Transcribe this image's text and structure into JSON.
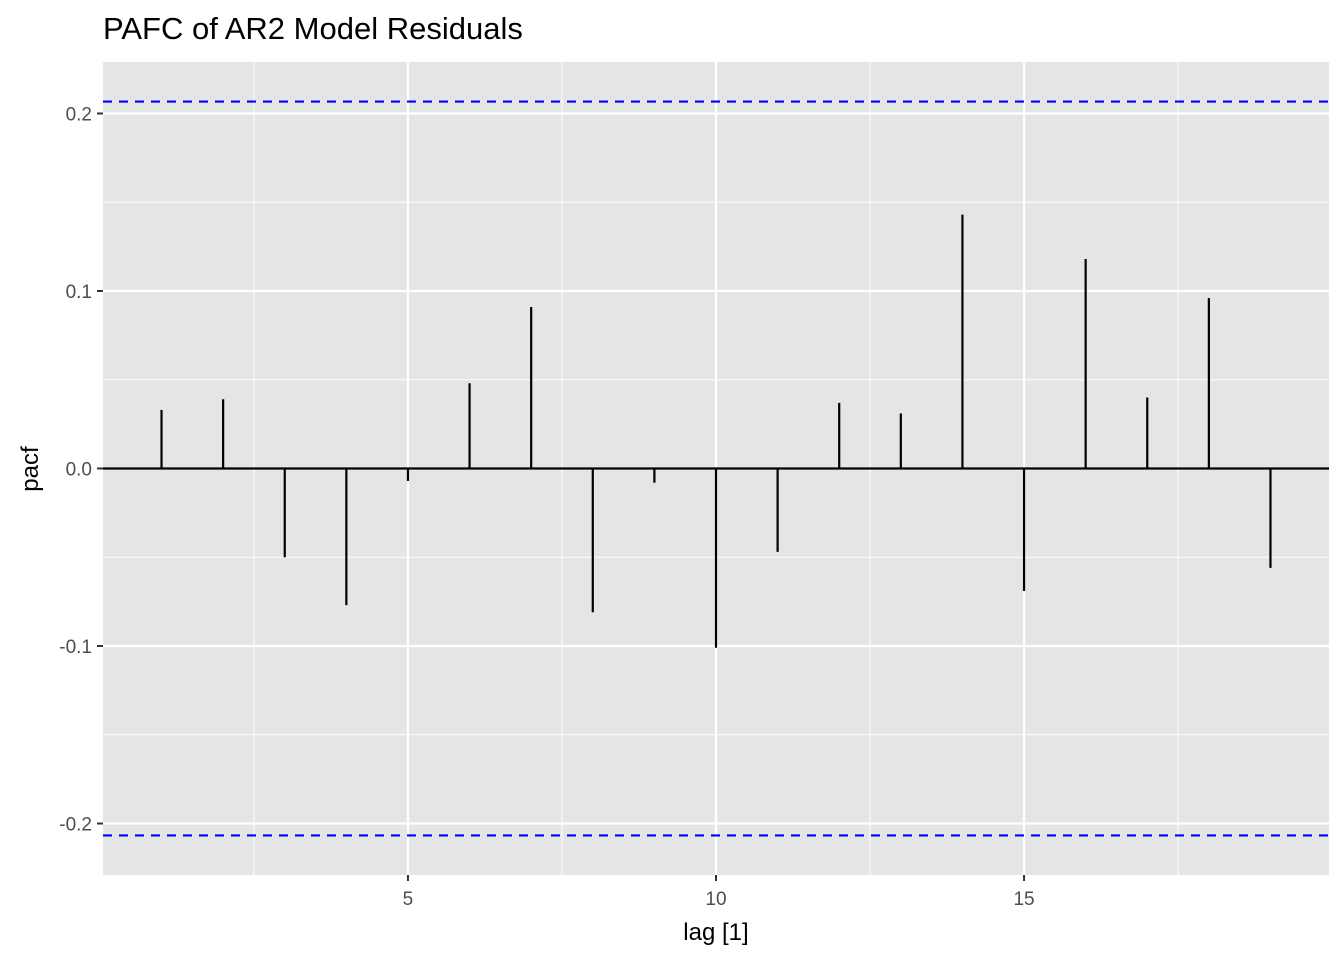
{
  "chart_data": {
    "type": "bar",
    "title": "PAFC of AR2 Model Residuals",
    "xlabel": "lag [1]",
    "ylabel": "pacf",
    "x": [
      1,
      2,
      3,
      4,
      5,
      6,
      7,
      8,
      9,
      10,
      11,
      12,
      13,
      14,
      15,
      16,
      17,
      18,
      19
    ],
    "values": [
      0.033,
      0.039,
      -0.05,
      -0.077,
      -0.007,
      0.048,
      0.091,
      -0.081,
      -0.008,
      -0.101,
      -0.047,
      0.037,
      0.031,
      0.143,
      -0.069,
      0.118,
      0.04,
      0.096,
      -0.056
    ],
    "xlim": [
      0.05,
      19.95
    ],
    "ylim": [
      -0.229,
      0.229
    ],
    "x_ticks": [
      5,
      10,
      15
    ],
    "x_tick_labels": [
      "5",
      "10",
      "15"
    ],
    "y_ticks": [
      -0.2,
      -0.1,
      0.0,
      0.1,
      0.2
    ],
    "y_tick_labels": [
      "-0.2",
      "-0.1",
      "0.0",
      "0.1",
      "0.2"
    ],
    "confidence_bounds": [
      0.2067,
      -0.2067
    ],
    "grid": true,
    "colors": {
      "panel_background": "#e5e5e5",
      "grid": "#ffffff",
      "spike": "#000000",
      "bound_line": "#0000ff",
      "tick_label": "#4d4d4d"
    }
  }
}
